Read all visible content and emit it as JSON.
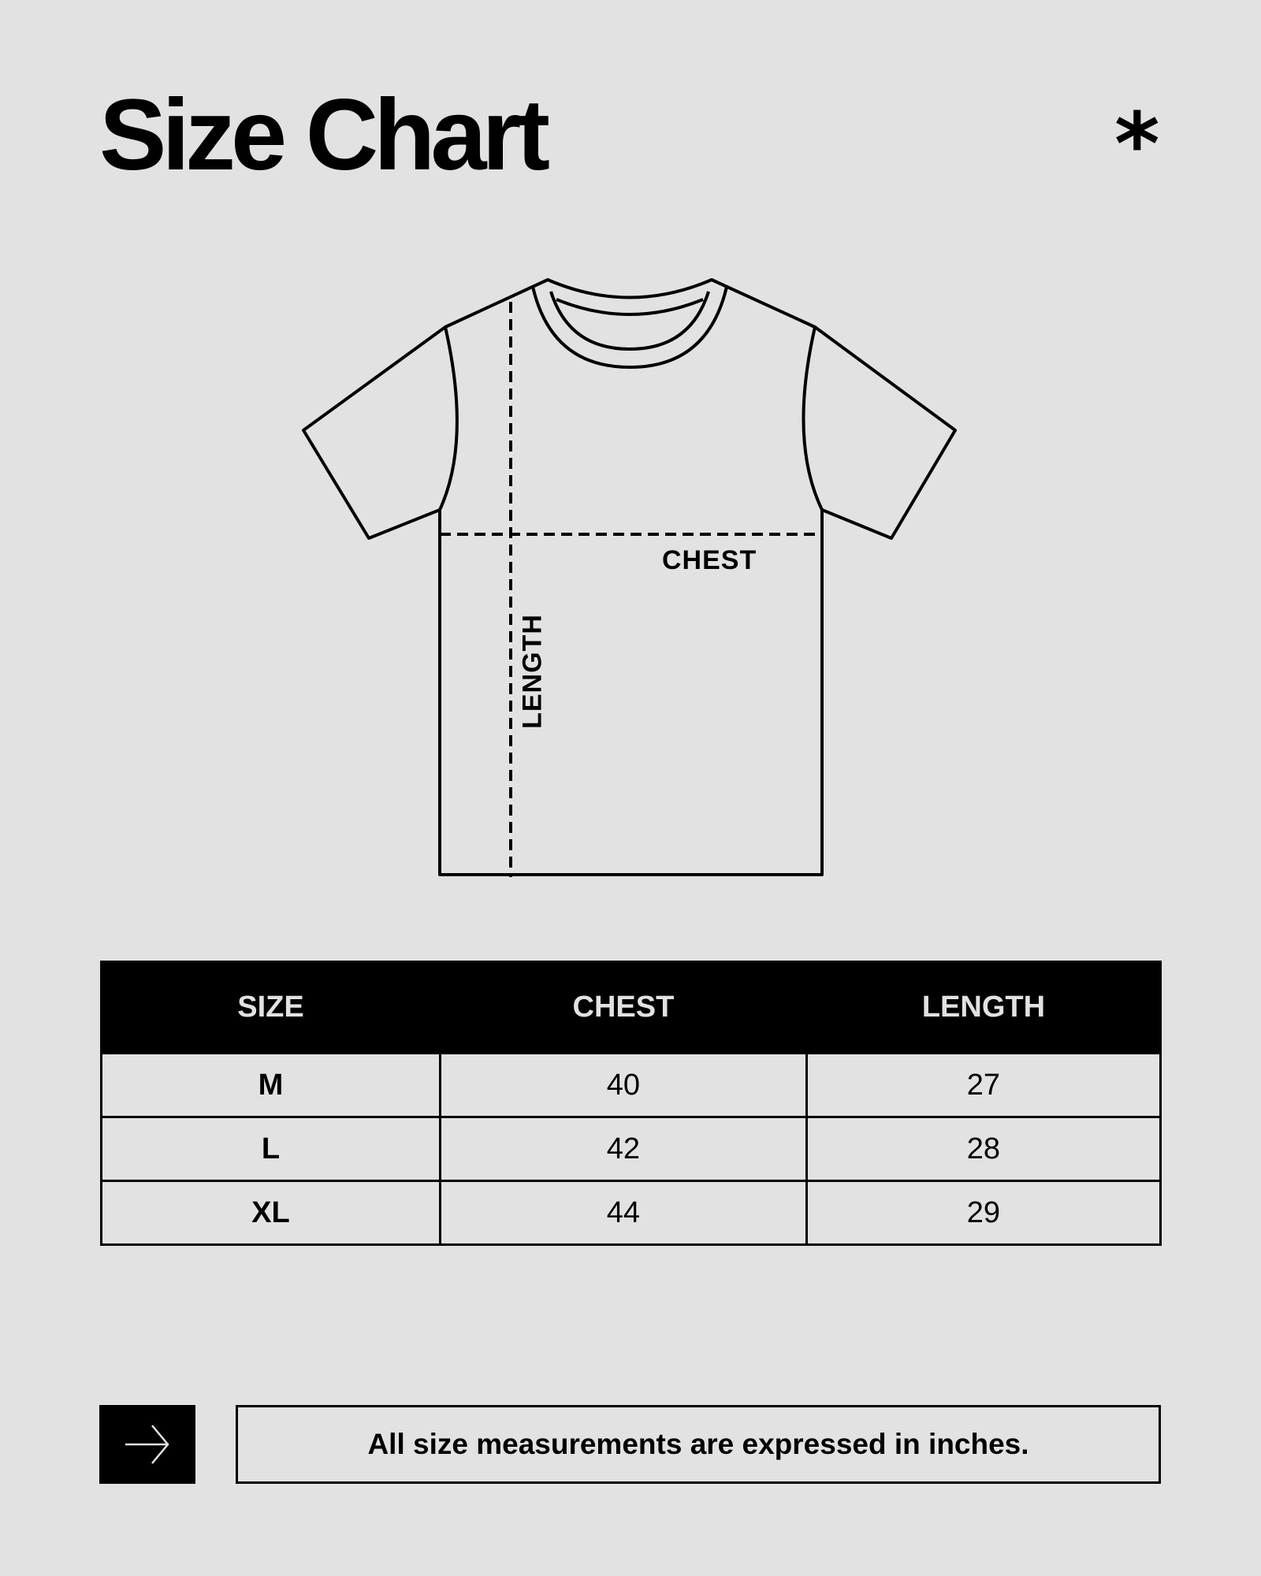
{
  "header": {
    "title": "Size Chart",
    "asterisk": "*"
  },
  "diagram": {
    "chest_label": "CHEST",
    "length_label": "LENGTH"
  },
  "table": {
    "headers": [
      "SIZE",
      "CHEST",
      "LENGTH"
    ],
    "rows": [
      {
        "size": "M",
        "chest": "40",
        "length": "27"
      },
      {
        "size": "L",
        "chest": "42",
        "length": "28"
      },
      {
        "size": "XL",
        "chest": "44",
        "length": "29"
      }
    ]
  },
  "footer": {
    "icon": "arrow-right-icon",
    "note": "All size measurements are expressed in inches."
  },
  "colors": {
    "background": "#e2e2e2",
    "ink": "#000000"
  }
}
